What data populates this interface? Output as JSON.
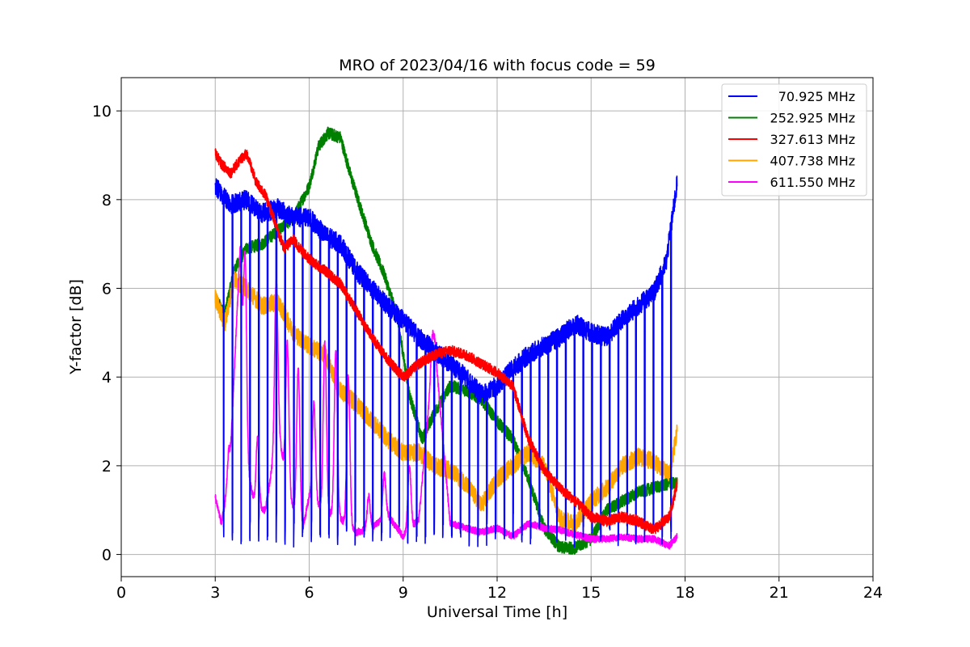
{
  "chart_data": {
    "type": "line",
    "title": "MRO of 2023/04/16 with focus code = 59",
    "xlabel": "Universal Time [h]",
    "ylabel": "Y-factor [dB]",
    "xlim": [
      0,
      24
    ],
    "ylim": [
      -0.5,
      10.75
    ],
    "xticks": [
      0,
      3,
      6,
      9,
      12,
      15,
      18,
      21,
      24
    ],
    "yticks": [
      0,
      2,
      4,
      6,
      8,
      10
    ],
    "grid": true,
    "legend_position": "top-right",
    "series": [
      {
        "name": "70.925 MHz",
        "color": "#0000ff",
        "x": [
          3.0,
          3.5,
          4.0,
          4.5,
          5.0,
          5.5,
          6.0,
          6.5,
          7.0,
          7.5,
          8.0,
          8.5,
          9.0,
          9.5,
          10.0,
          10.5,
          11.0,
          11.5,
          12.0,
          12.5,
          13.0,
          13.5,
          14.0,
          14.5,
          15.0,
          15.5,
          16.0,
          16.5,
          17.0,
          17.4,
          17.75
        ],
        "values": [
          8.3,
          7.9,
          8.0,
          7.7,
          7.8,
          7.6,
          7.6,
          7.2,
          7.0,
          6.4,
          6.0,
          5.6,
          5.3,
          4.9,
          4.6,
          4.3,
          4.0,
          3.6,
          3.8,
          4.2,
          4.5,
          4.7,
          4.9,
          5.2,
          5.0,
          4.9,
          5.3,
          5.6,
          5.9,
          6.6,
          8.4
        ],
        "dip_min": 0.1,
        "dip_period_h": 0.28
      },
      {
        "name": "252.925 MHz",
        "color": "#008000",
        "x": [
          3.0,
          3.3,
          3.6,
          4.0,
          4.5,
          5.0,
          5.5,
          6.0,
          6.3,
          6.6,
          7.0,
          7.3,
          7.6,
          8.0,
          8.4,
          8.8,
          9.2,
          9.6,
          10.0,
          10.5,
          11.0,
          11.5,
          12.0,
          12.5,
          13.0,
          13.5,
          14.0,
          14.5,
          15.0,
          15.5,
          16.0,
          16.5,
          17.0,
          17.5,
          17.75
        ],
        "values": [
          5.8,
          5.4,
          6.4,
          6.9,
          7.0,
          7.3,
          7.6,
          8.3,
          9.2,
          9.5,
          9.4,
          8.6,
          7.9,
          7.0,
          6.3,
          5.4,
          3.6,
          2.6,
          3.2,
          3.8,
          3.7,
          3.5,
          3.0,
          2.6,
          1.7,
          0.6,
          0.15,
          0.15,
          0.35,
          1.0,
          1.2,
          1.4,
          1.5,
          1.6,
          1.6
        ]
      },
      {
        "name": "327.613 MHz",
        "color": "#ff0000",
        "x": [
          3.0,
          3.2,
          3.5,
          3.8,
          4.0,
          4.3,
          4.6,
          4.9,
          5.2,
          5.5,
          5.8,
          6.1,
          6.5,
          7.0,
          7.5,
          8.0,
          8.5,
          9.0,
          9.5,
          10.0,
          10.5,
          11.0,
          11.5,
          12.0,
          12.5,
          13.0,
          13.5,
          14.0,
          14.5,
          15.0,
          15.5,
          16.0,
          16.5,
          17.0,
          17.5,
          17.75
        ],
        "values": [
          9.05,
          8.8,
          8.6,
          8.9,
          9.05,
          8.4,
          8.1,
          7.5,
          6.9,
          7.1,
          6.8,
          6.6,
          6.4,
          6.1,
          5.5,
          4.9,
          4.4,
          4.0,
          4.3,
          4.5,
          4.6,
          4.5,
          4.3,
          4.1,
          3.8,
          2.6,
          1.9,
          1.5,
          1.2,
          0.85,
          0.75,
          0.85,
          0.75,
          0.55,
          0.85,
          1.6
        ]
      },
      {
        "name": "407.738 MHz",
        "color": "#ffa500",
        "x": [
          3.0,
          3.3,
          3.6,
          4.0,
          4.5,
          5.0,
          5.5,
          6.0,
          6.5,
          7.0,
          7.5,
          8.0,
          8.5,
          9.0,
          9.5,
          10.0,
          10.5,
          11.0,
          11.5,
          12.0,
          12.5,
          13.0,
          13.5,
          14.0,
          14.5,
          15.0,
          15.5,
          16.0,
          16.5,
          17.0,
          17.5,
          17.75
        ],
        "values": [
          5.8,
          5.2,
          6.2,
          6.0,
          5.6,
          5.7,
          5.0,
          4.7,
          4.5,
          3.7,
          3.4,
          3.0,
          2.6,
          2.3,
          2.3,
          2.0,
          1.9,
          1.6,
          1.1,
          1.7,
          2.0,
          2.3,
          2.0,
          0.8,
          0.7,
          1.2,
          1.5,
          2.0,
          2.2,
          2.1,
          1.8,
          2.8
        ]
      },
      {
        "name": "611.550 MHz",
        "color": "#ff00ff",
        "x": [
          3.0,
          3.2,
          3.4,
          3.6,
          3.8,
          4.0,
          4.3,
          4.6,
          5.0,
          5.4,
          5.8,
          6.0,
          6.5,
          7.0,
          7.5,
          8.0,
          8.5,
          9.0,
          9.5,
          10.0,
          10.5,
          11.0,
          11.5,
          12.0,
          12.5,
          13.0,
          13.5,
          14.0,
          14.5,
          15.0,
          15.5,
          16.0,
          16.5,
          17.0,
          17.5,
          17.75
        ],
        "values": [
          1.3,
          0.7,
          1.5,
          4.0,
          7.0,
          2.0,
          1.0,
          1.0,
          2.8,
          1.2,
          0.6,
          1.3,
          1.0,
          0.8,
          0.5,
          0.6,
          0.9,
          0.4,
          0.8,
          4.8,
          0.7,
          0.6,
          0.5,
          0.6,
          0.4,
          0.7,
          0.6,
          0.55,
          0.45,
          0.35,
          0.35,
          0.4,
          0.35,
          0.35,
          0.2,
          0.4
        ],
        "peaks": [
          [
            3.45,
            2.4
          ],
          [
            3.95,
            6.8
          ],
          [
            4.35,
            2.6
          ],
          [
            4.95,
            6.2
          ],
          [
            5.3,
            4.8
          ],
          [
            5.65,
            4.2
          ],
          [
            6.15,
            3.4
          ],
          [
            6.5,
            4.8
          ],
          [
            6.85,
            4.6
          ],
          [
            7.25,
            4.0
          ],
          [
            7.9,
            1.3
          ],
          [
            8.4,
            1.8
          ],
          [
            9.2,
            2.0
          ],
          [
            9.95,
            5.0
          ]
        ]
      }
    ]
  }
}
